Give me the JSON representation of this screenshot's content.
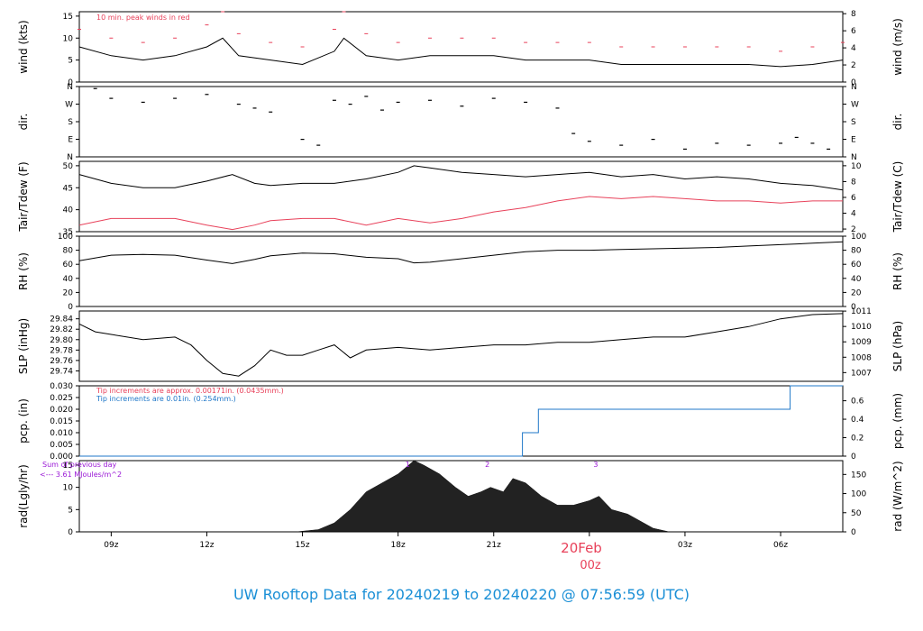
{
  "title": "UW Rooftop Data for 20240219  to  20240220 @ 07:56:59  (UTC)",
  "x_axis": {
    "tick_labels": [
      "09z",
      "12z",
      "15z",
      "18z",
      "21z",
      "",
      "03z",
      "06z"
    ],
    "tick_hours": [
      9,
      12,
      15,
      18,
      21,
      24,
      27,
      30
    ],
    "range_hours": [
      8,
      31.95
    ],
    "date_label": "20Feb",
    "date_sub": "00z"
  },
  "colors": {
    "black": "#000000",
    "red": "#e8415a",
    "blue": "#1f77c8",
    "purple": "#9a18d6",
    "title": "#1a8fd6",
    "grid": "#cccccc"
  },
  "chart_data": [
    {
      "type": "line",
      "id": "wind",
      "ylabel_left": "wind (kts)",
      "ylabel_right": "wind (m/s)",
      "ylim": [
        0,
        16
      ],
      "yticks_left": [
        0,
        5,
        10,
        15
      ],
      "yticks_right": [
        0,
        2,
        4,
        6,
        8
      ],
      "right_factor": 0.5144,
      "note": "10 min. peak winds in red",
      "series": [
        {
          "x": [
            8,
            9,
            10,
            11,
            12,
            12.5,
            13,
            14,
            15,
            16,
            16.3,
            17,
            18,
            19,
            20,
            21,
            22,
            23,
            24,
            25,
            26,
            27,
            28,
            29,
            30,
            31,
            31.95
          ],
          "y": [
            8,
            6,
            5,
            6,
            8,
            10,
            6,
            5,
            4,
            7,
            10,
            6,
            5,
            6,
            6,
            6,
            5,
            5,
            5,
            4,
            4,
            4,
            4,
            4,
            3.5,
            4,
            5
          ]
        }
      ],
      "peaks": {
        "x": [
          8,
          9,
          10,
          11,
          12,
          12.5,
          13,
          14,
          15,
          16,
          16.3,
          17,
          18,
          19,
          20,
          21,
          22,
          23,
          24,
          25,
          26,
          27,
          28,
          29,
          30,
          31,
          31.95
        ],
        "y": [
          12,
          10,
          9,
          10,
          13,
          16,
          11,
          9,
          8,
          12,
          16,
          11,
          9,
          10,
          10,
          10,
          9,
          9,
          9,
          8,
          8,
          8,
          8,
          8,
          7,
          8,
          9
        ]
      }
    },
    {
      "type": "scatter",
      "id": "dir",
      "ylabel_left": "dir.",
      "ylabel_right": "dir.",
      "ylim": [
        0,
        360
      ],
      "ytick_values": [
        0,
        90,
        180,
        270,
        360
      ],
      "ytick_labels": [
        "N",
        "E",
        "S",
        "W",
        "N"
      ],
      "series": [
        {
          "x": [
            8.5,
            9,
            10,
            11,
            12,
            13,
            13.5,
            14,
            15,
            15.5,
            16,
            16.5,
            17,
            17.5,
            18,
            19,
            20,
            21,
            22,
            23,
            23.5,
            24,
            25,
            26,
            27,
            28,
            29,
            30,
            30.5,
            31,
            31.5
          ],
          "y": [
            350,
            300,
            280,
            300,
            320,
            270,
            250,
            230,
            90,
            60,
            290,
            270,
            310,
            240,
            280,
            290,
            260,
            300,
            280,
            250,
            120,
            80,
            60,
            90,
            40,
            70,
            60,
            70,
            100,
            70,
            40
          ]
        }
      ]
    },
    {
      "type": "line",
      "id": "temp",
      "ylabel_left": "Tair/Tdew (F)",
      "ylabel_right": "Tair/Tdew (C)",
      "ylim": [
        35,
        51
      ],
      "yticks_left": [
        35,
        40,
        45,
        50
      ],
      "yticks_right": [
        2,
        4,
        6,
        8,
        10
      ],
      "series": [
        {
          "name": "Tair",
          "color": "#000000",
          "x": [
            8,
            9,
            10,
            11,
            12,
            12.8,
            13.5,
            14,
            15,
            16,
            17,
            18,
            18.5,
            19,
            20,
            21,
            22,
            23,
            24,
            25,
            26,
            27,
            28,
            29,
            30,
            31,
            31.95
          ],
          "y": [
            48,
            46,
            45,
            45,
            46.5,
            48,
            46,
            45.5,
            46,
            46,
            47,
            48.5,
            50,
            49.5,
            48.5,
            48,
            47.5,
            48,
            48.5,
            47.5,
            48,
            47,
            47.5,
            47,
            46,
            45.5,
            44.5
          ]
        },
        {
          "name": "Tdew",
          "color": "#e8415a",
          "x": [
            8,
            9,
            10,
            11,
            12,
            12.8,
            13.5,
            14,
            15,
            16,
            17,
            18,
            19,
            20,
            21,
            22,
            23,
            24,
            25,
            26,
            27,
            28,
            29,
            30,
            31,
            31.95
          ],
          "y": [
            36.5,
            38,
            38,
            38,
            36.5,
            35.5,
            36.5,
            37.5,
            38,
            38,
            36.5,
            38,
            37,
            38,
            39.5,
            40.5,
            42,
            43,
            42.5,
            43,
            42.5,
            42,
            42,
            41.5,
            42,
            42
          ]
        }
      ]
    },
    {
      "type": "line",
      "id": "rh",
      "ylabel_left": "RH (%)",
      "ylabel_right": "RH (%)",
      "ylim": [
        0,
        100
      ],
      "yticks_left": [
        0,
        20,
        40,
        60,
        80,
        100
      ],
      "yticks_right": [
        0,
        20,
        40,
        60,
        80,
        100
      ],
      "series": [
        {
          "x": [
            8,
            9,
            10,
            11,
            12,
            12.8,
            13.5,
            14,
            15,
            16,
            17,
            18,
            18.5,
            19,
            20,
            21,
            22,
            23,
            24,
            25,
            26,
            27,
            28,
            29,
            30,
            31,
            31.95
          ],
          "y": [
            65,
            73,
            74,
            73,
            66,
            61,
            67,
            72,
            76,
            75,
            70,
            68,
            62,
            63,
            68,
            73,
            78,
            80,
            80,
            81,
            82,
            83,
            84,
            86,
            88,
            90,
            92
          ]
        }
      ]
    },
    {
      "type": "line",
      "id": "slp",
      "ylabel_left": "SLP (inHg)",
      "ylabel_right": "SLP (hPa)",
      "ylim": [
        29.72,
        29.855
      ],
      "yticks_left": [
        29.74,
        29.76,
        29.78,
        29.8,
        29.82,
        29.84
      ],
      "ytick_labels_left": [
        "29.74",
        "29.76",
        "29.78",
        "29.80",
        "29.82",
        "29.84"
      ],
      "yticks_right": [
        1007,
        1008,
        1009,
        1010,
        1011
      ],
      "series": [
        {
          "x": [
            8,
            8.5,
            9,
            10,
            11,
            11.5,
            12,
            12.5,
            13,
            13.5,
            14,
            14.5,
            15,
            15.5,
            16,
            16.5,
            17,
            18,
            19,
            20,
            21,
            22,
            23,
            24,
            25,
            26,
            27,
            28,
            29,
            30,
            31,
            31.95
          ],
          "y": [
            29.83,
            29.815,
            29.81,
            29.8,
            29.805,
            29.79,
            29.76,
            29.735,
            29.73,
            29.75,
            29.78,
            29.77,
            29.77,
            29.78,
            29.79,
            29.765,
            29.78,
            29.785,
            29.78,
            29.785,
            29.79,
            29.79,
            29.795,
            29.795,
            29.8,
            29.805,
            29.805,
            29.815,
            29.825,
            29.84,
            29.848,
            29.85
          ]
        }
      ]
    },
    {
      "type": "line",
      "id": "pcp",
      "ylabel_left": "pcp. (in)",
      "ylabel_right": "pcp. (mm)",
      "ylim": [
        0,
        0.03
      ],
      "yticks_left": [
        0,
        0.005,
        0.01,
        0.015,
        0.02,
        0.025,
        0.03
      ],
      "ytick_labels_left": [
        "0.000",
        "0.005",
        "0.010",
        "0.015",
        "0.020",
        "0.025",
        "0.030"
      ],
      "yticks_right": [
        0,
        0.2,
        0.4,
        0.6
      ],
      "note1": "Tip increments are approx. 0.00171in. (0.0435mm.)",
      "note2": "Tip increments are 0.01in. (0.254mm.)",
      "series": [
        {
          "step": true,
          "x": [
            8,
            21.9,
            21.9,
            22.4,
            22.4,
            30.3,
            30.3,
            31.95
          ],
          "y": [
            0,
            0,
            0.01,
            0.01,
            0.02,
            0.02,
            0.03,
            0.03
          ]
        }
      ]
    },
    {
      "type": "area",
      "id": "rad",
      "ylabel_left": "rad(Lgly/hr)",
      "ylabel_right": "rad (W/m^2)",
      "ylim": [
        0,
        16
      ],
      "yticks_left": [
        0,
        5,
        10,
        15
      ],
      "yticks_right": [
        0,
        50,
        100,
        150
      ],
      "note1": "Sum of previous day",
      "note2": "<--- 3.61 MJoules/m^2",
      "markers": [
        {
          "x": 18.3,
          "label": "1"
        },
        {
          "x": 20.8,
          "label": "2"
        },
        {
          "x": 24.2,
          "label": "3"
        }
      ],
      "series": [
        {
          "x": [
            14.8,
            15.5,
            16,
            16.5,
            17,
            17.5,
            18,
            18.5,
            18.8,
            19.3,
            19.8,
            20.2,
            20.6,
            20.9,
            21.3,
            21.6,
            22,
            22.5,
            23,
            23.5,
            24,
            24.3,
            24.7,
            25.2,
            25.7,
            26,
            26.5
          ],
          "y": [
            0,
            0.5,
            2,
            5,
            9,
            11,
            13,
            16,
            15,
            13,
            10,
            8,
            9,
            10,
            9,
            12,
            11,
            8,
            6,
            6,
            7,
            8,
            5,
            4,
            2,
            0.8,
            0
          ]
        }
      ]
    }
  ]
}
